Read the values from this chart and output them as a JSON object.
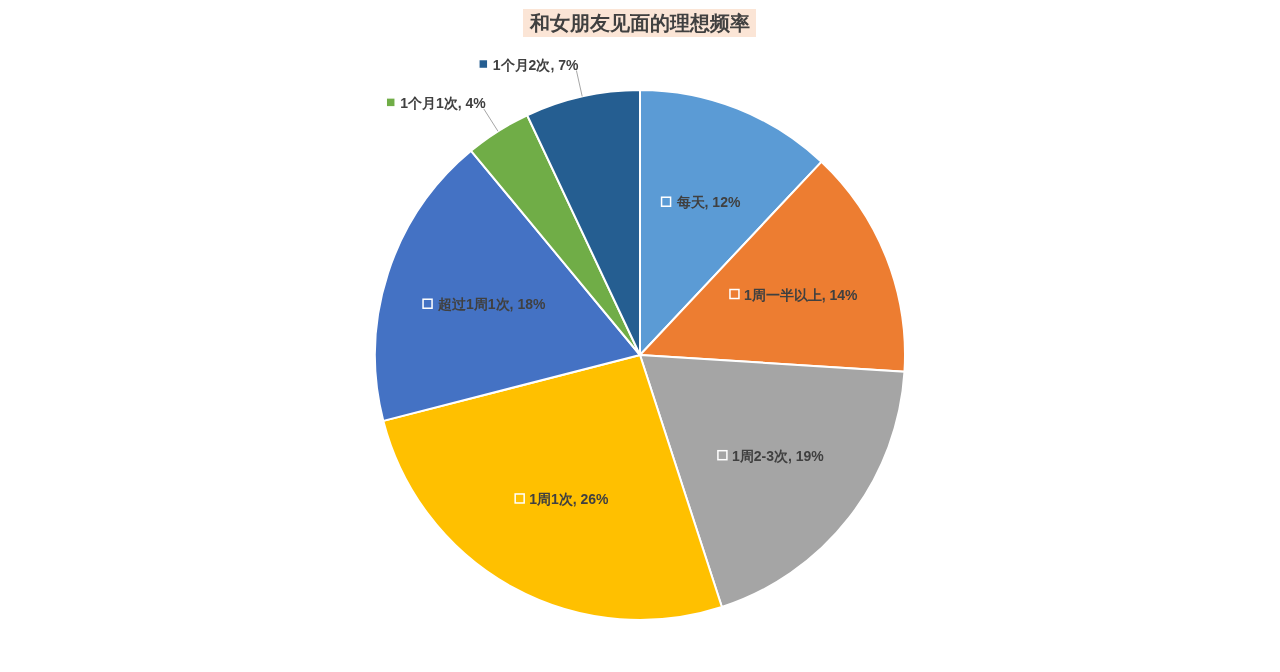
{
  "chart_data": {
    "type": "pie",
    "title": "和女朋友见面的理想频率",
    "categories": [
      "每天",
      "1周一半以上",
      "1周2-3次",
      "1周1次",
      "超过1周1次",
      "1个月1次",
      "1个月2次"
    ],
    "values": [
      12,
      14,
      19,
      26,
      18,
      4,
      7
    ],
    "value_labels": [
      "12%",
      "14%",
      "19%",
      "26%",
      "18%",
      "4%",
      "7%"
    ],
    "legend": "center",
    "colors": [
      "#5b9bd5",
      "#ed7d31",
      "#a5a5a5",
      "#ffc000",
      "#4472c4",
      "#70ad47",
      "#255e91"
    ]
  }
}
